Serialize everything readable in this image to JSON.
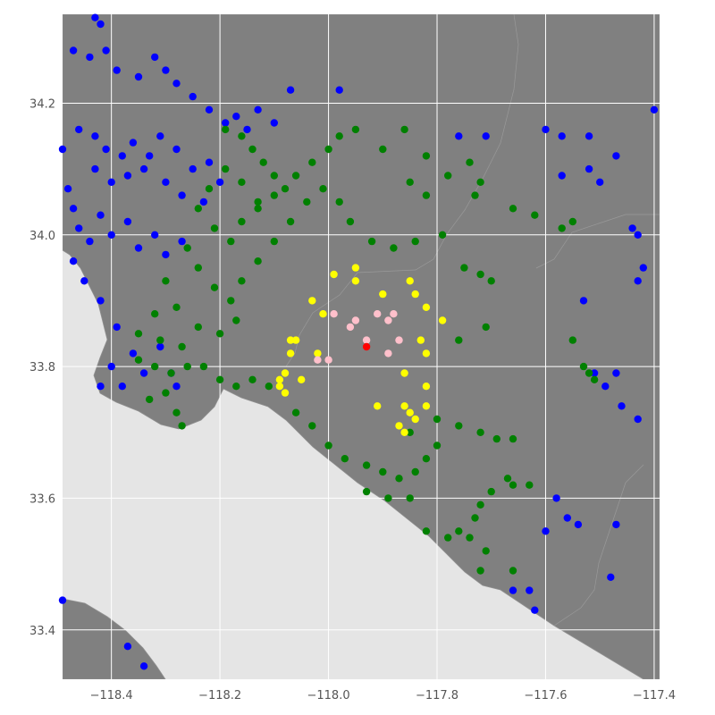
{
  "chart_data": {
    "type": "scatter",
    "title": "",
    "xlabel": "",
    "ylabel": "",
    "xlim": [
      -118.49,
      -117.39
    ],
    "ylim": [
      33.325,
      34.335
    ],
    "x_ticks": [
      "−118.4",
      "−118.2",
      "−118.0",
      "−117.8",
      "−117.6",
      "−117.4"
    ],
    "x_tick_values": [
      -118.4,
      -118.2,
      -118.0,
      -117.8,
      -117.6,
      -117.4
    ],
    "y_ticks": [
      "33.4",
      "33.6",
      "33.8",
      "34.0",
      "34.2"
    ],
    "y_tick_values": [
      33.4,
      33.6,
      33.8,
      34.0,
      34.2
    ],
    "grid": true,
    "colors": {
      "background": "#e5e5e5",
      "land": "#808080",
      "grid": "#ffffff",
      "tick_text": "#555555"
    },
    "series": [
      {
        "color": "#0000ff",
        "points": [
          [
            -118.43,
            34.33
          ],
          [
            -118.42,
            34.32
          ],
          [
            -118.47,
            34.28
          ],
          [
            -118.44,
            34.27
          ],
          [
            -118.41,
            34.28
          ],
          [
            -118.39,
            34.25
          ],
          [
            -118.35,
            34.24
          ],
          [
            -118.32,
            34.27
          ],
          [
            -118.3,
            34.25
          ],
          [
            -118.28,
            34.23
          ],
          [
            -118.25,
            34.21
          ],
          [
            -118.22,
            34.19
          ],
          [
            -118.19,
            34.17
          ],
          [
            -118.17,
            34.18
          ],
          [
            -118.15,
            34.16
          ],
          [
            -118.13,
            34.19
          ],
          [
            -118.1,
            34.17
          ],
          [
            -118.07,
            34.22
          ],
          [
            -118.46,
            34.16
          ],
          [
            -118.43,
            34.15
          ],
          [
            -118.41,
            34.13
          ],
          [
            -118.38,
            34.12
          ],
          [
            -118.36,
            34.14
          ],
          [
            -118.33,
            34.12
          ],
          [
            -118.31,
            34.15
          ],
          [
            -118.28,
            34.13
          ],
          [
            -118.25,
            34.1
          ],
          [
            -118.22,
            34.11
          ],
          [
            -118.2,
            34.08
          ],
          [
            -118.23,
            34.05
          ],
          [
            -118.27,
            34.06
          ],
          [
            -118.3,
            34.08
          ],
          [
            -118.34,
            34.1
          ],
          [
            -118.37,
            34.09
          ],
          [
            -118.4,
            34.08
          ],
          [
            -118.43,
            34.1
          ],
          [
            -118.49,
            34.13
          ],
          [
            -118.48,
            34.07
          ],
          [
            -118.47,
            34.04
          ],
          [
            -118.46,
            34.01
          ],
          [
            -118.44,
            33.99
          ],
          [
            -118.42,
            34.03
          ],
          [
            -118.4,
            34.0
          ],
          [
            -118.37,
            34.02
          ],
          [
            -118.35,
            33.98
          ],
          [
            -118.32,
            34.0
          ],
          [
            -118.3,
            33.97
          ],
          [
            -118.27,
            33.99
          ],
          [
            -118.47,
            33.96
          ],
          [
            -118.45,
            33.93
          ],
          [
            -118.42,
            33.9
          ],
          [
            -118.39,
            33.86
          ],
          [
            -118.36,
            33.82
          ],
          [
            -118.4,
            33.8
          ],
          [
            -118.42,
            33.77
          ],
          [
            -118.38,
            33.77
          ],
          [
            -118.34,
            33.79
          ],
          [
            -118.31,
            33.83
          ],
          [
            -118.29,
            33.79
          ],
          [
            -118.28,
            33.77
          ],
          [
            -118.49,
            33.445
          ],
          [
            -118.37,
            33.375
          ],
          [
            -118.34,
            33.345
          ],
          [
            -117.98,
            34.22
          ],
          [
            -117.76,
            34.15
          ],
          [
            -117.71,
            34.15
          ],
          [
            -117.6,
            34.16
          ],
          [
            -117.57,
            34.15
          ],
          [
            -117.52,
            34.15
          ],
          [
            -117.47,
            34.12
          ],
          [
            -117.4,
            34.19
          ],
          [
            -117.44,
            34.01
          ],
          [
            -117.43,
            34.0
          ],
          [
            -117.42,
            33.95
          ],
          [
            -117.43,
            33.93
          ],
          [
            -117.53,
            33.9
          ],
          [
            -117.51,
            33.79
          ],
          [
            -117.49,
            33.77
          ],
          [
            -117.46,
            33.74
          ],
          [
            -117.43,
            33.72
          ],
          [
            -117.47,
            33.79
          ],
          [
            -117.58,
            33.6
          ],
          [
            -117.56,
            33.57
          ],
          [
            -117.6,
            33.55
          ],
          [
            -117.54,
            33.56
          ],
          [
            -117.47,
            33.56
          ],
          [
            -117.48,
            33.48
          ],
          [
            -117.63,
            33.46
          ],
          [
            -117.62,
            33.43
          ],
          [
            -117.66,
            33.46
          ],
          [
            -117.5,
            34.08
          ],
          [
            -117.52,
            34.1
          ],
          [
            -117.57,
            34.09
          ]
        ]
      },
      {
        "color": "#008000",
        "points": [
          [
            -118.19,
            34.16
          ],
          [
            -118.16,
            34.15
          ],
          [
            -118.14,
            34.13
          ],
          [
            -118.12,
            34.11
          ],
          [
            -118.1,
            34.09
          ],
          [
            -118.08,
            34.07
          ],
          [
            -118.13,
            34.05
          ],
          [
            -118.16,
            34.08
          ],
          [
            -118.19,
            34.1
          ],
          [
            -118.22,
            34.07
          ],
          [
            -118.24,
            34.04
          ],
          [
            -118.21,
            34.01
          ],
          [
            -118.18,
            33.99
          ],
          [
            -118.16,
            34.02
          ],
          [
            -118.13,
            34.04
          ],
          [
            -118.1,
            34.06
          ],
          [
            -118.06,
            34.09
          ],
          [
            -118.03,
            34.11
          ],
          [
            -118.0,
            34.13
          ],
          [
            -117.98,
            34.15
          ],
          [
            -117.95,
            34.16
          ],
          [
            -117.9,
            34.13
          ],
          [
            -117.86,
            34.16
          ],
          [
            -117.82,
            34.12
          ],
          [
            -118.26,
            33.98
          ],
          [
            -118.24,
            33.95
          ],
          [
            -118.21,
            33.92
          ],
          [
            -118.18,
            33.9
          ],
          [
            -118.16,
            33.93
          ],
          [
            -118.13,
            33.96
          ],
          [
            -118.1,
            33.99
          ],
          [
            -118.07,
            34.02
          ],
          [
            -118.04,
            34.05
          ],
          [
            -118.01,
            34.07
          ],
          [
            -117.98,
            34.05
          ],
          [
            -117.96,
            34.02
          ],
          [
            -118.3,
            33.93
          ],
          [
            -118.28,
            33.89
          ],
          [
            -118.32,
            33.88
          ],
          [
            -118.35,
            33.85
          ],
          [
            -118.31,
            33.84
          ],
          [
            -118.27,
            33.83
          ],
          [
            -118.24,
            33.86
          ],
          [
            -118.2,
            33.85
          ],
          [
            -118.17,
            33.87
          ],
          [
            -118.35,
            33.81
          ],
          [
            -118.32,
            33.8
          ],
          [
            -118.29,
            33.79
          ],
          [
            -118.26,
            33.8
          ],
          [
            -118.23,
            33.8
          ],
          [
            -118.2,
            33.78
          ],
          [
            -118.17,
            33.77
          ],
          [
            -118.14,
            33.78
          ],
          [
            -118.11,
            33.77
          ],
          [
            -118.3,
            33.76
          ],
          [
            -118.33,
            33.75
          ],
          [
            -118.28,
            33.73
          ],
          [
            -118.27,
            33.71
          ],
          [
            -117.85,
            34.08
          ],
          [
            -117.82,
            34.06
          ],
          [
            -117.78,
            34.09
          ],
          [
            -117.74,
            34.11
          ],
          [
            -117.73,
            34.06
          ],
          [
            -117.72,
            34.08
          ],
          [
            -117.79,
            34.0
          ],
          [
            -117.84,
            33.99
          ],
          [
            -117.88,
            33.98
          ],
          [
            -117.92,
            33.99
          ],
          [
            -117.75,
            33.95
          ],
          [
            -117.72,
            33.94
          ],
          [
            -117.7,
            33.93
          ],
          [
            -117.66,
            34.04
          ],
          [
            -117.62,
            34.03
          ],
          [
            -117.57,
            34.01
          ],
          [
            -117.55,
            34.02
          ],
          [
            -117.71,
            33.86
          ],
          [
            -117.76,
            33.84
          ],
          [
            -117.55,
            33.84
          ],
          [
            -117.53,
            33.8
          ],
          [
            -117.52,
            33.79
          ],
          [
            -117.51,
            33.78
          ],
          [
            -118.06,
            33.73
          ],
          [
            -118.03,
            33.71
          ],
          [
            -118.0,
            33.68
          ],
          [
            -117.97,
            33.66
          ],
          [
            -117.93,
            33.65
          ],
          [
            -117.9,
            33.64
          ],
          [
            -117.87,
            33.63
          ],
          [
            -117.84,
            33.64
          ],
          [
            -117.82,
            33.66
          ],
          [
            -117.8,
            33.68
          ],
          [
            -117.85,
            33.7
          ],
          [
            -117.8,
            33.72
          ],
          [
            -117.76,
            33.71
          ],
          [
            -117.72,
            33.7
          ],
          [
            -117.69,
            33.69
          ],
          [
            -117.66,
            33.69
          ],
          [
            -117.93,
            33.61
          ],
          [
            -117.89,
            33.6
          ],
          [
            -117.85,
            33.6
          ],
          [
            -117.82,
            33.55
          ],
          [
            -117.78,
            33.54
          ],
          [
            -117.76,
            33.55
          ],
          [
            -117.74,
            33.54
          ],
          [
            -117.73,
            33.57
          ],
          [
            -117.72,
            33.59
          ],
          [
            -117.7,
            33.61
          ],
          [
            -117.66,
            33.62
          ],
          [
            -117.63,
            33.62
          ],
          [
            -117.67,
            33.63
          ],
          [
            -117.71,
            33.52
          ],
          [
            -117.72,
            33.49
          ],
          [
            -117.66,
            33.49
          ]
        ]
      },
      {
        "color": "#ffff00",
        "points": [
          [
            -117.95,
            33.95
          ],
          [
            -117.85,
            33.93
          ],
          [
            -117.84,
            33.91
          ],
          [
            -117.9,
            33.91
          ],
          [
            -117.95,
            33.93
          ],
          [
            -117.99,
            33.94
          ],
          [
            -118.03,
            33.9
          ],
          [
            -118.06,
            33.84
          ],
          [
            -118.07,
            33.84
          ],
          [
            -118.01,
            33.88
          ],
          [
            -117.82,
            33.89
          ],
          [
            -117.79,
            33.87
          ],
          [
            -117.83,
            33.84
          ],
          [
            -117.82,
            33.82
          ],
          [
            -117.86,
            33.79
          ],
          [
            -118.07,
            33.82
          ],
          [
            -118.08,
            33.79
          ],
          [
            -118.09,
            33.78
          ],
          [
            -118.09,
            33.77
          ],
          [
            -118.08,
            33.76
          ],
          [
            -118.05,
            33.78
          ],
          [
            -118.02,
            33.82
          ],
          [
            -117.82,
            33.77
          ],
          [
            -117.82,
            33.74
          ],
          [
            -117.85,
            33.73
          ],
          [
            -117.86,
            33.74
          ],
          [
            -117.84,
            33.72
          ],
          [
            -117.87,
            33.71
          ],
          [
            -117.86,
            33.7
          ],
          [
            -117.91,
            33.74
          ]
        ]
      },
      {
        "color": "#ffc0cb",
        "points": [
          [
            -117.99,
            33.88
          ],
          [
            -117.95,
            33.87
          ],
          [
            -117.91,
            33.88
          ],
          [
            -117.89,
            33.87
          ],
          [
            -117.88,
            33.88
          ],
          [
            -117.87,
            33.84
          ],
          [
            -117.89,
            33.82
          ],
          [
            -117.93,
            33.84
          ],
          [
            -117.96,
            33.86
          ],
          [
            -118.0,
            33.81
          ],
          [
            -118.02,
            33.81
          ]
        ]
      },
      {
        "color": "#ff0000",
        "points": [
          [
            -117.93,
            33.83
          ]
        ]
      }
    ]
  }
}
